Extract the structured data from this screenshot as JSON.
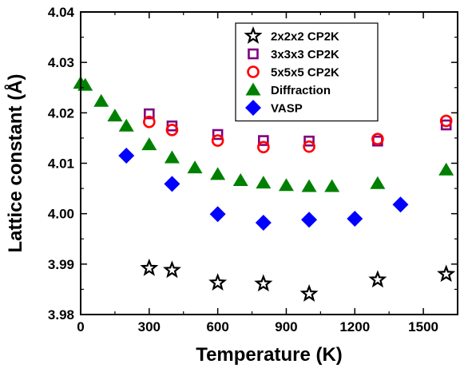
{
  "chart_data": {
    "type": "scatter",
    "xlabel": "Temperature (K)",
    "ylabel": "Lattice constant (Å)",
    "xlim": [
      0,
      1650
    ],
    "ylim": [
      3.98,
      4.04
    ],
    "xticks": [
      0,
      300,
      600,
      900,
      1200,
      1500
    ],
    "yticks": [
      3.98,
      3.99,
      4.0,
      4.01,
      4.02,
      4.03,
      4.04
    ],
    "xtick_labels": [
      "0",
      "300",
      "600",
      "900",
      "1200",
      "1500"
    ],
    "ytick_labels": [
      "3.98",
      "3.99",
      "4.00",
      "4.01",
      "4.02",
      "4.03",
      "4.04"
    ],
    "grid": false,
    "legend_position": "top-center",
    "series": [
      {
        "name": "2x2x2 CP2K",
        "marker": "star-icon",
        "color": "#000000",
        "x": [
          300,
          400,
          600,
          800,
          1000,
          1300,
          1600
        ],
        "y": [
          3.9892,
          3.9888,
          3.9863,
          3.9861,
          3.9841,
          3.9869,
          3.988
        ]
      },
      {
        "name": "3x3x3 CP2K",
        "marker": "square-open-icon",
        "color": "#800080",
        "x": [
          300,
          400,
          600,
          800,
          1000,
          1300,
          1600
        ],
        "y": [
          4.0198,
          4.0174,
          4.0157,
          4.0145,
          4.0144,
          4.0144,
          4.0176
        ]
      },
      {
        "name": "5x5x5 CP2K",
        "marker": "circle-open-icon",
        "color": "#ff0000",
        "x": [
          300,
          400,
          600,
          800,
          1000,
          1300,
          1600
        ],
        "y": [
          4.0182,
          4.0166,
          4.0145,
          4.0132,
          4.0133,
          4.0148,
          4.0184
        ]
      },
      {
        "name": "Diffraction",
        "marker": "triangle-icon",
        "color": "#008000",
        "x": [
          0,
          20,
          90,
          150,
          200,
          300,
          400,
          500,
          600,
          700,
          800,
          900,
          1000,
          1100,
          1300,
          1600
        ],
        "y": [
          4.0259,
          4.0255,
          4.0223,
          4.0194,
          4.0174,
          4.0137,
          4.0111,
          4.0091,
          4.0078,
          4.0066,
          4.0061,
          4.0056,
          4.0054,
          4.0054,
          4.006,
          4.0087
        ]
      },
      {
        "name": "VASP",
        "marker": "diamond-icon",
        "color": "#0000ff",
        "x": [
          200,
          400,
          600,
          800,
          1000,
          1200,
          1400
        ],
        "y": [
          4.0115,
          4.0059,
          3.9999,
          3.9982,
          3.9988,
          3.999,
          4.0018
        ]
      }
    ]
  }
}
